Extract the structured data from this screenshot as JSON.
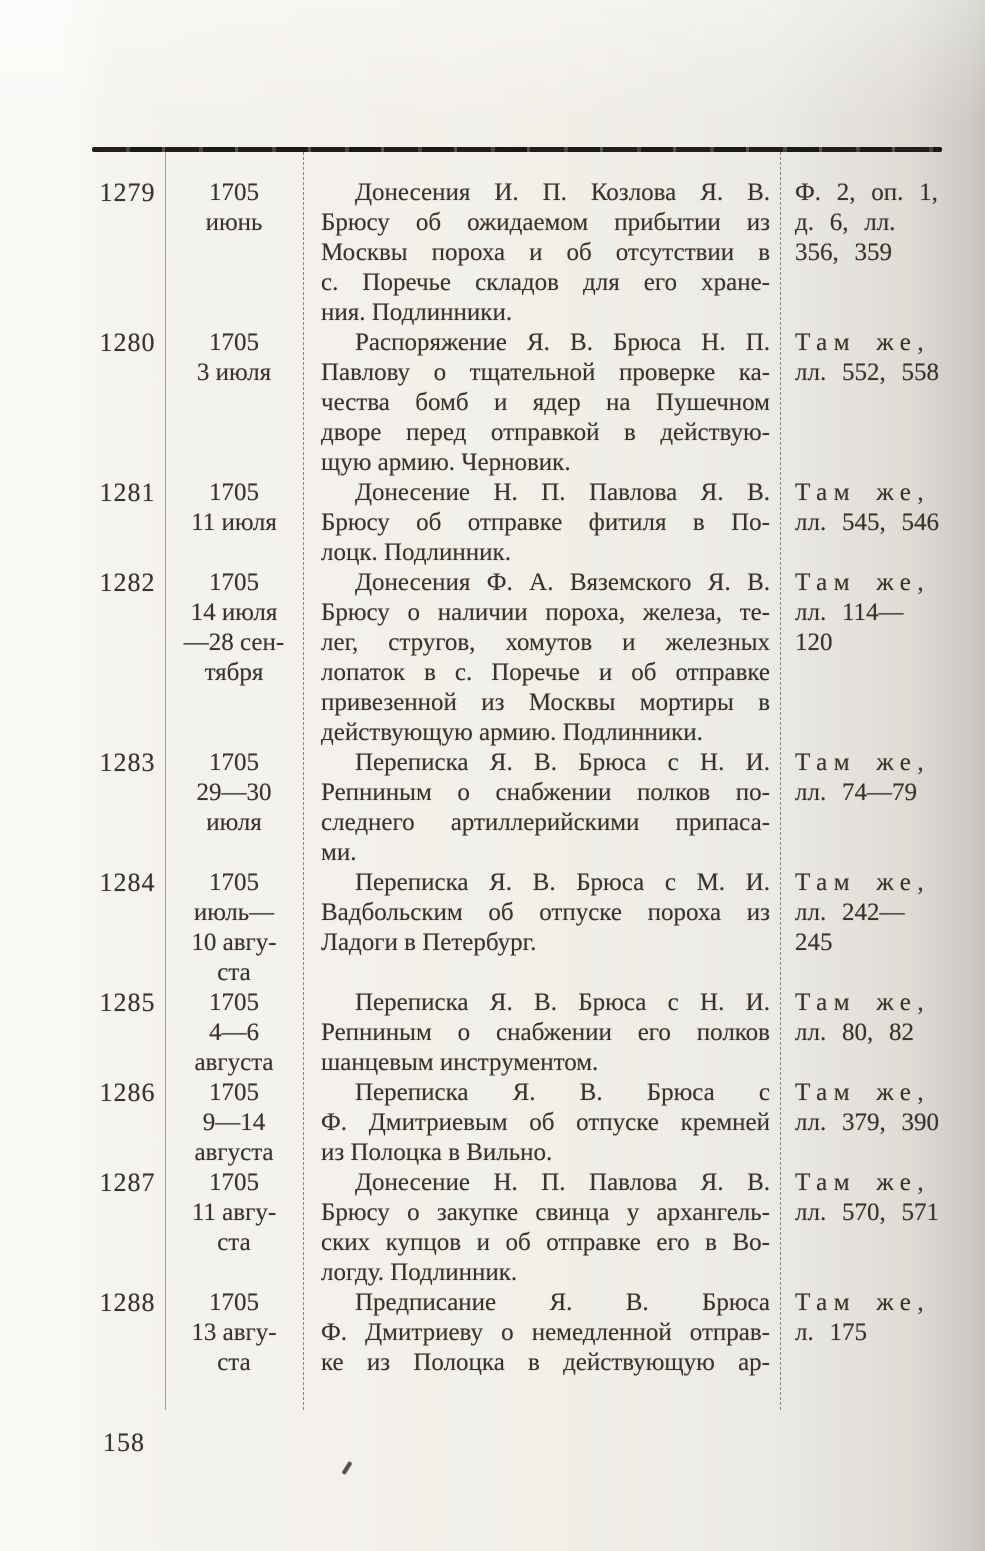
{
  "page": {
    "page_number": "158"
  },
  "entries": [
    {
      "number": "1279",
      "date_lines": [
        "1705",
        "июнь"
      ],
      "description_lines": [
        "Донесения И. П. Козлова Я. В.",
        "Брюсу об ожидаемом прибытии из",
        "Москвы пороха и об отсутствии в",
        "с. Поречье складов для его хране-",
        "ния. Подлинники."
      ],
      "reference_lines": [
        "Ф. 2, оп. 1,",
        "д. 6, лл.",
        "356, 359"
      ],
      "reference_spaced": false
    },
    {
      "number": "1280",
      "date_lines": [
        "1705",
        "3 июля"
      ],
      "description_lines": [
        "Распоряжение Я. В. Брюса Н. П.",
        "Павлову о тщательной проверке ка-",
        "чества бомб и ядер на Пушечном",
        "дворе перед отправкой в действую-",
        "щую армию. Черновик."
      ],
      "reference_lines": [
        "Там же,",
        "лл. 552, 558"
      ],
      "reference_spaced": true
    },
    {
      "number": "1281",
      "date_lines": [
        "1705",
        "11 июля"
      ],
      "description_lines": [
        "Донесение Н. П. Павлова Я. В.",
        "Брюсу об отправке фитиля в По-",
        "лоцк. Подлинник."
      ],
      "reference_lines": [
        "Там же,",
        "лл. 545, 546"
      ],
      "reference_spaced": true
    },
    {
      "number": "1282",
      "date_lines": [
        "1705",
        "14 июля",
        "—28 сен-",
        "тября"
      ],
      "description_lines": [
        "Донесения Ф. А. Вяземского Я. В.",
        "Брюсу о наличии пороха, железа, те-",
        "лег, стругов, хомутов и железных",
        "лопаток в с. Поречье и об отправке",
        "привезенной из Москвы мортиры в",
        "действующую армию. Подлинники."
      ],
      "reference_lines": [
        "Там же,",
        "лл. 114—",
        "120"
      ],
      "reference_spaced": true
    },
    {
      "number": "1283",
      "date_lines": [
        "1705",
        "29—30",
        "июля"
      ],
      "description_lines": [
        "Переписка Я. В. Брюса с Н. И.",
        "Репниным о снабжении полков по-",
        "следнего артиллерийскими припаса-",
        "ми."
      ],
      "reference_lines": [
        "Там же,",
        "лл. 74—79"
      ],
      "reference_spaced": true
    },
    {
      "number": "1284",
      "date_lines": [
        "1705",
        "июль—",
        "10 авгу-",
        "ста"
      ],
      "description_lines": [
        "Переписка Я. В. Брюса с М. И.",
        "Вадбольским об отпуске пороха из",
        "Ладоги в Петербург."
      ],
      "reference_lines": [
        "Там же,",
        "лл. 242—",
        "245"
      ],
      "reference_spaced": true
    },
    {
      "number": "1285",
      "date_lines": [
        "1705",
        "4—6",
        "августа"
      ],
      "description_lines": [
        "Переписка Я. В. Брюса с Н. И.",
        "Репниным о снабжении его полков",
        "шанцевым инструментом."
      ],
      "reference_lines": [
        "Там же,",
        "лл. 80, 82"
      ],
      "reference_spaced": true
    },
    {
      "number": "1286",
      "date_lines": [
        "1705",
        "9—14",
        "августа"
      ],
      "description_lines": [
        "Переписка Я. В. Брюса с",
        "Ф. Дмитриевым об отпуске кремней",
        "из Полоцка в Вильно."
      ],
      "reference_lines": [
        "Там же,",
        "лл. 379, 390"
      ],
      "reference_spaced": true
    },
    {
      "number": "1287",
      "date_lines": [
        "1705",
        "11 авгу-",
        "ста"
      ],
      "description_lines": [
        "Донесение Н. П. Павлова Я. В.",
        "Брюсу о закупке свинца у архангель-",
        "ских купцов и об отправке его в Во-",
        "логду. Подлинник."
      ],
      "reference_lines": [
        "Там же,",
        "лл. 570, 571"
      ],
      "reference_spaced": true
    },
    {
      "number": "1288",
      "date_lines": [
        "1705",
        "13 авгу-",
        "ста"
      ],
      "description_lines": [
        "Предписание Я. В. Брюса",
        "Ф. Дмитриеву о немедленной отправ-",
        "ке из Полоцка в действующую ар-"
      ],
      "reference_lines": [
        "Там же,",
        "л. 175"
      ],
      "reference_spaced": true,
      "justify_all": true
    }
  ]
}
